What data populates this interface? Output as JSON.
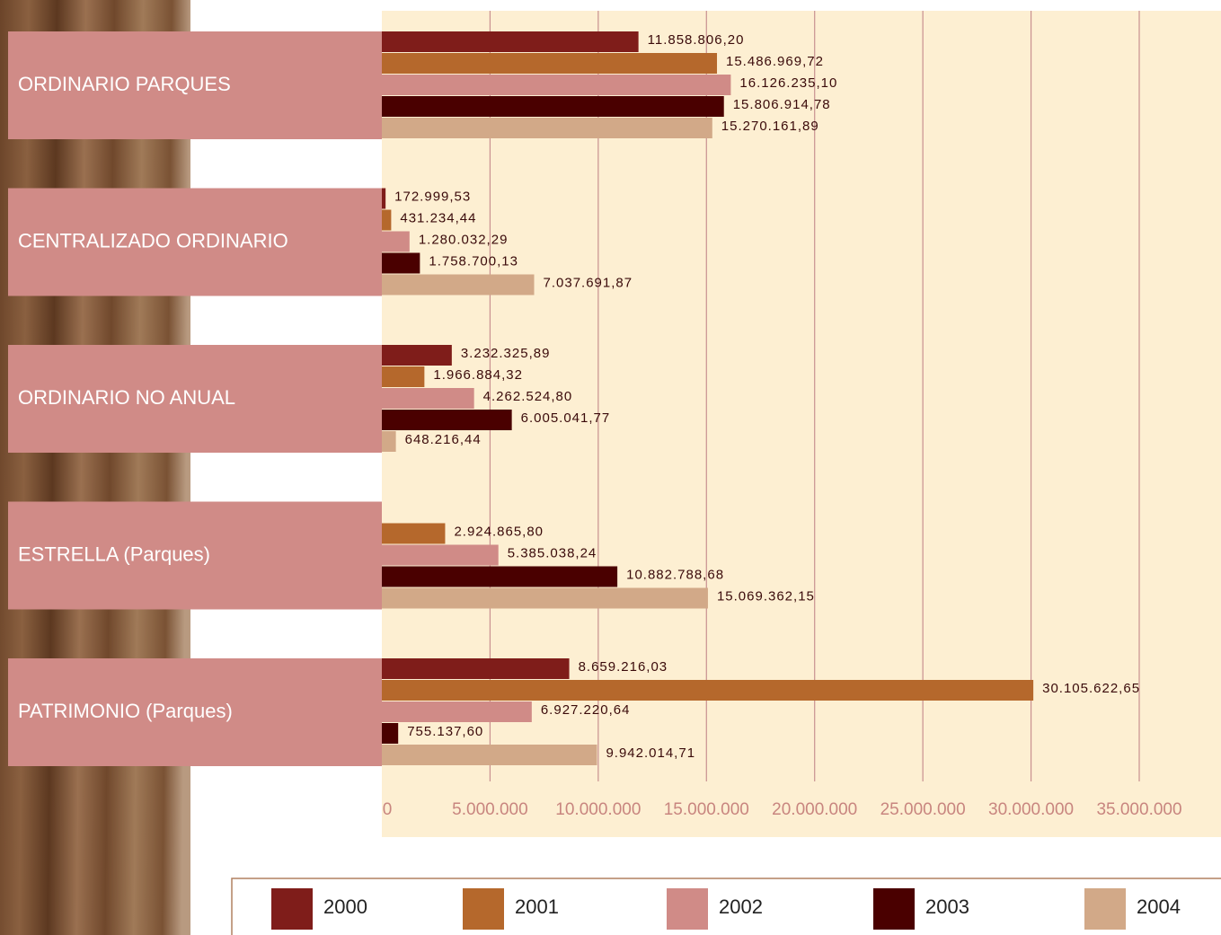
{
  "chart_data": {
    "type": "hbar",
    "categories": [
      "ORDINARIO PARQUES",
      "CENTRALIZADO ORDINARIO",
      "ORDINARIO NO ANUAL",
      "ESTRELLA (Parques)",
      "PATRIMONIO (Parques)"
    ],
    "series": [
      {
        "name": "2000",
        "color": "#7f1d1a",
        "values": [
          11858806.2,
          172999.53,
          3232325.89,
          null,
          8659216.03
        ],
        "value_labels": [
          "11.858.806,20",
          "172.999,53",
          "3.232.325,89",
          null,
          "8.659.216,03"
        ]
      },
      {
        "name": "2001",
        "color": "#b5682c",
        "values": [
          15486969.72,
          431234.44,
          1966884.32,
          2924865.8,
          30105622.65
        ],
        "value_labels": [
          "15.486.969,72",
          "431.234,44",
          "1.966.884,32",
          "2.924.865,80",
          "30.105.622,65"
        ]
      },
      {
        "name": "2002",
        "color": "#d08b87",
        "values": [
          16126235.1,
          1280032.29,
          4262524.8,
          5385038.24,
          6927220.64
        ],
        "value_labels": [
          "16.126.235,10",
          "1.280.032,29",
          "4.262.524,80",
          "5.385.038,24",
          "6.927.220,64"
        ]
      },
      {
        "name": "2003",
        "color": "#4a0000",
        "values": [
          15806914.78,
          1758700.13,
          6005041.77,
          10882788.68,
          755137.6
        ],
        "value_labels": [
          "15.806.914,78",
          "1.758.700,13",
          "6.005.041,77",
          "10.882.788,68",
          "755.137,60"
        ]
      },
      {
        "name": "2004",
        "color": "#d2a988",
        "values": [
          15270161.89,
          7037691.87,
          648216.44,
          15069362.15,
          9942014.71
        ],
        "value_labels": [
          "15.270.161,89",
          "7.037.691,87",
          "648.216,44",
          "15.069.362,15",
          "9.942.014,71"
        ]
      }
    ],
    "xlim": [
      0,
      35000000
    ],
    "xticks": [
      0,
      {
        "value": 5000000,
        "label": "5.000.000"
      },
      {
        "value": 10000000,
        "label": "10.000.000"
      },
      {
        "value": 15000000,
        "label": "15.000.000"
      },
      {
        "value": 20000000,
        "label": "20.000.000"
      },
      {
        "value": 25000000,
        "label": "25.000.000"
      },
      {
        "value": 30000000,
        "label": "30.000.000"
      },
      {
        "value": 35000000,
        "label": "35.000.000"
      }
    ],
    "grid": true
  }
}
